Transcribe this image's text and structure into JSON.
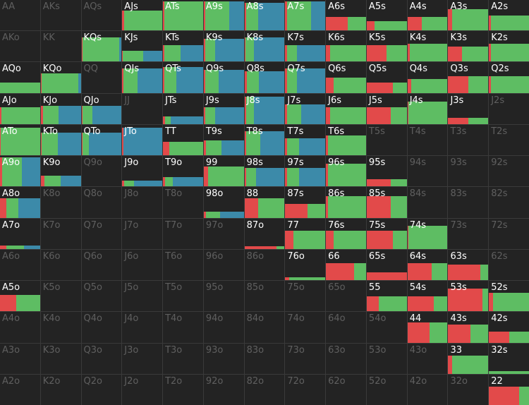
{
  "legend_colors": {
    "red": "#e24a4a",
    "green": "#5ebd63",
    "blue": "#3c8aa9"
  },
  "cells": [
    {
      "label": "AA",
      "active": false
    },
    {
      "label": "AKs",
      "active": false
    },
    {
      "label": "AQs",
      "active": false
    },
    {
      "label": "AJs",
      "active": true,
      "freq": 0.65,
      "mix": {
        "red": 0.04,
        "green": 0.96,
        "blue": 0
      }
    },
    {
      "label": "ATs",
      "active": true,
      "freq": 0.95,
      "mix": {
        "red": 0.03,
        "green": 0.97,
        "blue": 0
      }
    },
    {
      "label": "A9s",
      "active": true,
      "freq": 0.95,
      "mix": {
        "red": 0.03,
        "green": 0.6,
        "blue": 0.37
      }
    },
    {
      "label": "A8s",
      "active": true,
      "freq": 0.9,
      "mix": {
        "red": 0.04,
        "green": 0.3,
        "blue": 0.66
      }
    },
    {
      "label": "A7s",
      "active": true,
      "freq": 0.95,
      "mix": {
        "red": 0.04,
        "green": 0.6,
        "blue": 0.36
      }
    },
    {
      "label": "A6s",
      "active": true,
      "freq": 0.45,
      "mix": {
        "red": 0.55,
        "green": 0.45,
        "blue": 0
      }
    },
    {
      "label": "A5s",
      "active": true,
      "freq": 0.3,
      "mix": {
        "red": 0.2,
        "green": 0.8,
        "blue": 0
      }
    },
    {
      "label": "A4s",
      "active": true,
      "freq": 0.45,
      "mix": {
        "red": 0.35,
        "green": 0.65,
        "blue": 0
      }
    },
    {
      "label": "A3s",
      "active": true,
      "freq": 0.7,
      "mix": {
        "red": 0.1,
        "green": 0.9,
        "blue": 0
      }
    },
    {
      "label": "A2s",
      "active": true,
      "freq": 0.5,
      "mix": {
        "red": 0.05,
        "green": 0.95,
        "blue": 0
      }
    },
    {
      "label": "AKo",
      "active": false
    },
    {
      "label": "KK",
      "active": false
    },
    {
      "label": "KQs",
      "active": true,
      "freq": 0.8,
      "mix": {
        "red": 0.02,
        "green": 0.93,
        "blue": 0.05
      }
    },
    {
      "label": "KJs",
      "active": true,
      "freq": 0.35,
      "mix": {
        "red": 0.02,
        "green": 0.5,
        "blue": 0.48
      }
    },
    {
      "label": "KTs",
      "active": true,
      "freq": 0.55,
      "mix": {
        "red": 0.04,
        "green": 0.4,
        "blue": 0.56
      }
    },
    {
      "label": "K9s",
      "active": true,
      "freq": 0.75,
      "mix": {
        "red": 0.04,
        "green": 0.25,
        "blue": 0.71
      }
    },
    {
      "label": "K8s",
      "active": true,
      "freq": 0.8,
      "mix": {
        "red": 0.03,
        "green": 0.2,
        "blue": 0.77
      }
    },
    {
      "label": "K7s",
      "active": true,
      "freq": 0.55,
      "mix": {
        "red": 0.05,
        "green": 0.25,
        "blue": 0.7
      }
    },
    {
      "label": "K6s",
      "active": true,
      "freq": 0.55,
      "mix": {
        "red": 0.1,
        "green": 0.9,
        "blue": 0
      }
    },
    {
      "label": "K5s",
      "active": true,
      "freq": 0.55,
      "mix": {
        "red": 0.5,
        "green": 0.5,
        "blue": 0
      }
    },
    {
      "label": "K4s",
      "active": true,
      "freq": 0.6,
      "mix": {
        "red": 0.05,
        "green": 0.95,
        "blue": 0
      }
    },
    {
      "label": "K3s",
      "active": true,
      "freq": 0.5,
      "mix": {
        "red": 0.35,
        "green": 0.65,
        "blue": 0
      }
    },
    {
      "label": "K2s",
      "active": true,
      "freq": 0.6,
      "mix": {
        "red": 0.05,
        "green": 0.95,
        "blue": 0
      }
    },
    {
      "label": "AQo",
      "active": true,
      "freq": 0.35,
      "mix": {
        "red": 0,
        "green": 1,
        "blue": 0
      }
    },
    {
      "label": "KQo",
      "active": true,
      "freq": 0.65,
      "mix": {
        "red": 0.03,
        "green": 0.9,
        "blue": 0.07
      }
    },
    {
      "label": "QQ",
      "active": false
    },
    {
      "label": "QJs",
      "active": true,
      "freq": 0.8,
      "mix": {
        "red": 0.03,
        "green": 0.35,
        "blue": 0.62
      }
    },
    {
      "label": "QTs",
      "active": true,
      "freq": 0.85,
      "mix": {
        "red": 0.04,
        "green": 0.3,
        "blue": 0.66
      }
    },
    {
      "label": "Q9s",
      "active": true,
      "freq": 0.75,
      "mix": {
        "red": 0.03,
        "green": 0.35,
        "blue": 0.62
      }
    },
    {
      "label": "Q8s",
      "active": true,
      "freq": 0.7,
      "mix": {
        "red": 0.06,
        "green": 0.3,
        "blue": 0.64
      }
    },
    {
      "label": "Q7s",
      "active": true,
      "freq": 0.8,
      "mix": {
        "red": 0.05,
        "green": 0.25,
        "blue": 0.7
      }
    },
    {
      "label": "Q6s",
      "active": true,
      "freq": 0.5,
      "mix": {
        "red": 0.2,
        "green": 0.8,
        "blue": 0
      }
    },
    {
      "label": "Q5s",
      "active": true,
      "freq": 0.35,
      "mix": {
        "red": 0.65,
        "green": 0.35,
        "blue": 0
      }
    },
    {
      "label": "Q4s",
      "active": true,
      "freq": 0.45,
      "mix": {
        "red": 0.1,
        "green": 0.9,
        "blue": 0
      }
    },
    {
      "label": "Q3s",
      "active": true,
      "freq": 0.55,
      "mix": {
        "red": 0.5,
        "green": 0.5,
        "blue": 0
      }
    },
    {
      "label": "Q2s",
      "active": true,
      "freq": 0.55,
      "mix": {
        "red": 0.05,
        "green": 0.95,
        "blue": 0
      }
    },
    {
      "label": "AJo",
      "active": true,
      "freq": 0.55,
      "mix": {
        "red": 0.03,
        "green": 0.97,
        "blue": 0
      }
    },
    {
      "label": "KJo",
      "active": true,
      "freq": 0.6,
      "mix": {
        "red": 0.05,
        "green": 0.4,
        "blue": 0.55
      }
    },
    {
      "label": "QJo",
      "active": true,
      "freq": 0.6,
      "mix": {
        "red": 0.03,
        "green": 0.25,
        "blue": 0.72
      }
    },
    {
      "label": "JJ",
      "active": false
    },
    {
      "label": "JTs",
      "active": true,
      "freq": 0.25,
      "mix": {
        "red": 0.05,
        "green": 0.15,
        "blue": 0.8
      }
    },
    {
      "label": "J9s",
      "active": true,
      "freq": 0.55,
      "mix": {
        "red": 0.04,
        "green": 0.25,
        "blue": 0.71
      }
    },
    {
      "label": "J8s",
      "active": true,
      "freq": 0.9,
      "mix": {
        "red": 0.04,
        "green": 0.2,
        "blue": 0.76
      }
    },
    {
      "label": "J7s",
      "active": true,
      "freq": 0.65,
      "mix": {
        "red": 0.05,
        "green": 0.35,
        "blue": 0.6
      }
    },
    {
      "label": "J6s",
      "active": true,
      "freq": 0.55,
      "mix": {
        "red": 0.1,
        "green": 0.9,
        "blue": 0
      }
    },
    {
      "label": "J5s",
      "active": true,
      "freq": 0.55,
      "mix": {
        "red": 0.6,
        "green": 0.4,
        "blue": 0
      }
    },
    {
      "label": "J4s",
      "active": true,
      "freq": 0.75,
      "mix": {
        "red": 0.02,
        "green": 0.98,
        "blue": 0
      }
    },
    {
      "label": "J3s",
      "active": true,
      "freq": 0.2,
      "mix": {
        "red": 0.5,
        "green": 0.5,
        "blue": 0
      }
    },
    {
      "label": "J2s",
      "active": false
    },
    {
      "label": "ATo",
      "active": true,
      "freq": 0.9,
      "mix": {
        "red": 0.02,
        "green": 0.98,
        "blue": 0
      }
    },
    {
      "label": "KTo",
      "active": true,
      "freq": 0.75,
      "mix": {
        "red": 0.03,
        "green": 0.4,
        "blue": 0.57
      }
    },
    {
      "label": "QTo",
      "active": true,
      "freq": 0.75,
      "mix": {
        "red": 0.03,
        "green": 0.15,
        "blue": 0.82
      }
    },
    {
      "label": "JTo",
      "active": true,
      "freq": 0.9,
      "mix": {
        "red": 0.03,
        "green": 0,
        "blue": 0.97
      }
    },
    {
      "label": "TT",
      "active": true,
      "freq": 0.45,
      "mix": {
        "red": 0.15,
        "green": 0.85,
        "blue": 0
      }
    },
    {
      "label": "T9s",
      "active": true,
      "freq": 0.5,
      "mix": {
        "red": 0.05,
        "green": 0.4,
        "blue": 0.55
      }
    },
    {
      "label": "T8s",
      "active": true,
      "freq": 0.8,
      "mix": {
        "red": 0.04,
        "green": 0.35,
        "blue": 0.61
      }
    },
    {
      "label": "T7s",
      "active": true,
      "freq": 0.55,
      "mix": {
        "red": 0.05,
        "green": 0.3,
        "blue": 0.65
      }
    },
    {
      "label": "T6s",
      "active": true,
      "freq": 0.65,
      "mix": {
        "red": 0.05,
        "green": 0.95,
        "blue": 0
      }
    },
    {
      "label": "T5s",
      "active": false
    },
    {
      "label": "T4s",
      "active": false
    },
    {
      "label": "T3s",
      "active": false
    },
    {
      "label": "T2s",
      "active": false
    },
    {
      "label": "A9o",
      "active": true,
      "freq": 0.95,
      "mix": {
        "red": 0.05,
        "green": 0.5,
        "blue": 0.45
      }
    },
    {
      "label": "K9o",
      "active": true,
      "freq": 0.35,
      "mix": {
        "red": 0.1,
        "green": 0.4,
        "blue": 0.5
      }
    },
    {
      "label": "Q9o",
      "active": false
    },
    {
      "label": "J9o",
      "active": true,
      "freq": 0.2,
      "mix": {
        "red": 0.05,
        "green": 0.25,
        "blue": 0.7
      }
    },
    {
      "label": "T9o",
      "active": true,
      "freq": 0.3,
      "mix": {
        "red": 0.05,
        "green": 0.2,
        "blue": 0.75
      }
    },
    {
      "label": "99",
      "active": true,
      "freq": 0.65,
      "mix": {
        "red": 0.1,
        "green": 0.9,
        "blue": 0
      }
    },
    {
      "label": "98s",
      "active": true,
      "freq": 0.6,
      "mix": {
        "red": 0.04,
        "green": 0.25,
        "blue": 0.71
      }
    },
    {
      "label": "97s",
      "active": true,
      "freq": 0.6,
      "mix": {
        "red": 0.05,
        "green": 0.3,
        "blue": 0.65
      }
    },
    {
      "label": "96s",
      "active": true,
      "freq": 0.75,
      "mix": {
        "red": 0.05,
        "green": 0.95,
        "blue": 0
      }
    },
    {
      "label": "95s",
      "active": true,
      "freq": 0.25,
      "mix": {
        "red": 0.6,
        "green": 0.4,
        "blue": 0
      }
    },
    {
      "label": "94s",
      "active": false
    },
    {
      "label": "93s",
      "active": false
    },
    {
      "label": "92s",
      "active": false
    },
    {
      "label": "A8o",
      "active": true,
      "freq": 0.65,
      "mix": {
        "red": 0.15,
        "green": 0.3,
        "blue": 0.55
      }
    },
    {
      "label": "K8o",
      "active": false
    },
    {
      "label": "Q8o",
      "active": false
    },
    {
      "label": "J8o",
      "active": false
    },
    {
      "label": "T8o",
      "active": false
    },
    {
      "label": "98o",
      "active": true,
      "freq": 0.2,
      "mix": {
        "red": 0.05,
        "green": 0.35,
        "blue": 0.6
      }
    },
    {
      "label": "88",
      "active": true,
      "freq": 0.65,
      "mix": {
        "red": 0.35,
        "green": 0.65,
        "blue": 0
      }
    },
    {
      "label": "87s",
      "active": true,
      "freq": 0.45,
      "mix": {
        "red": 0.55,
        "green": 0.45,
        "blue": 0
      }
    },
    {
      "label": "86s",
      "active": true,
      "freq": 0.7,
      "mix": {
        "red": 0.05,
        "green": 0.95,
        "blue": 0
      }
    },
    {
      "label": "85s",
      "active": true,
      "freq": 0.7,
      "mix": {
        "red": 0.6,
        "green": 0.4,
        "blue": 0
      }
    },
    {
      "label": "84s",
      "active": false
    },
    {
      "label": "83s",
      "active": false
    },
    {
      "label": "82s",
      "active": false
    },
    {
      "label": "A7o",
      "active": true,
      "freq": 0.12,
      "mix": {
        "red": 0.15,
        "green": 0.45,
        "blue": 0.4
      }
    },
    {
      "label": "K7o",
      "active": false
    },
    {
      "label": "Q7o",
      "active": false
    },
    {
      "label": "J7o",
      "active": false
    },
    {
      "label": "T7o",
      "active": false
    },
    {
      "label": "97o",
      "active": false
    },
    {
      "label": "87o",
      "active": true,
      "freq": 0.1,
      "mix": {
        "red": 0.8,
        "green": 0.2,
        "blue": 0
      }
    },
    {
      "label": "77",
      "active": true,
      "freq": 0.6,
      "mix": {
        "red": 0.2,
        "green": 0.8,
        "blue": 0
      }
    },
    {
      "label": "76s",
      "active": true,
      "freq": 0.6,
      "mix": {
        "red": 0.2,
        "green": 0.8,
        "blue": 0
      }
    },
    {
      "label": "75s",
      "active": true,
      "freq": 0.6,
      "mix": {
        "red": 0.65,
        "green": 0.35,
        "blue": 0
      }
    },
    {
      "label": "74s",
      "active": true,
      "freq": 0.75,
      "mix": {
        "red": 0.02,
        "green": 0.98,
        "blue": 0
      }
    },
    {
      "label": "73s",
      "active": false
    },
    {
      "label": "72s",
      "active": false
    },
    {
      "label": "A6o",
      "active": false
    },
    {
      "label": "K6o",
      "active": false
    },
    {
      "label": "Q6o",
      "active": false
    },
    {
      "label": "J6o",
      "active": false
    },
    {
      "label": "T6o",
      "active": false
    },
    {
      "label": "96o",
      "active": false
    },
    {
      "label": "86o",
      "active": false
    },
    {
      "label": "76o",
      "active": true,
      "freq": 0.1,
      "mix": {
        "red": 0.1,
        "green": 0.9,
        "blue": 0
      }
    },
    {
      "label": "66",
      "active": true,
      "freq": 0.55,
      "mix": {
        "red": 0.7,
        "green": 0.3,
        "blue": 0
      }
    },
    {
      "label": "65s",
      "active": true,
      "freq": 0.25,
      "mix": {
        "red": 1,
        "green": 0,
        "blue": 0
      }
    },
    {
      "label": "64s",
      "active": true,
      "freq": 0.55,
      "mix": {
        "red": 0.6,
        "green": 0.4,
        "blue": 0
      }
    },
    {
      "label": "63s",
      "active": true,
      "freq": 0.5,
      "mix": {
        "red": 0.8,
        "green": 0.2,
        "blue": 0
      }
    },
    {
      "label": "62s",
      "active": false
    },
    {
      "label": "A5o",
      "active": true,
      "freq": 0.55,
      "mix": {
        "red": 0.4,
        "green": 0.6,
        "blue": 0
      }
    },
    {
      "label": "K5o",
      "active": false
    },
    {
      "label": "Q5o",
      "active": false
    },
    {
      "label": "J5o",
      "active": false
    },
    {
      "label": "T5o",
      "active": false
    },
    {
      "label": "95o",
      "active": false
    },
    {
      "label": "85o",
      "active": false
    },
    {
      "label": "75o",
      "active": false
    },
    {
      "label": "65o",
      "active": false
    },
    {
      "label": "55",
      "active": true,
      "freq": 0.5,
      "mix": {
        "red": 0.3,
        "green": 0.7,
        "blue": 0
      }
    },
    {
      "label": "54s",
      "active": true,
      "freq": 0.5,
      "mix": {
        "red": 0.65,
        "green": 0.35,
        "blue": 0
      }
    },
    {
      "label": "53s",
      "active": true,
      "freq": 0.75,
      "mix": {
        "red": 0.85,
        "green": 0.15,
        "blue": 0
      }
    },
    {
      "label": "52s",
      "active": true,
      "freq": 0.6,
      "mix": {
        "red": 0.1,
        "green": 0.9,
        "blue": 0
      }
    },
    {
      "label": "A4o",
      "active": false
    },
    {
      "label": "K4o",
      "active": false
    },
    {
      "label": "Q4o",
      "active": false
    },
    {
      "label": "J4o",
      "active": false
    },
    {
      "label": "T4o",
      "active": false
    },
    {
      "label": "94o",
      "active": false
    },
    {
      "label": "84o",
      "active": false
    },
    {
      "label": "74o",
      "active": false
    },
    {
      "label": "64o",
      "active": false
    },
    {
      "label": "54o",
      "active": false
    },
    {
      "label": "44",
      "active": true,
      "freq": 0.65,
      "mix": {
        "red": 0.55,
        "green": 0.45,
        "blue": 0
      }
    },
    {
      "label": "43s",
      "active": true,
      "freq": 0.6,
      "mix": {
        "red": 0.55,
        "green": 0.45,
        "blue": 0
      }
    },
    {
      "label": "42s",
      "active": true,
      "freq": 0.35,
      "mix": {
        "red": 0.5,
        "green": 0.5,
        "blue": 0
      }
    },
    {
      "label": "A3o",
      "active": false
    },
    {
      "label": "K3o",
      "active": false
    },
    {
      "label": "Q3o",
      "active": false
    },
    {
      "label": "J3o",
      "active": false
    },
    {
      "label": "T3o",
      "active": false
    },
    {
      "label": "93o",
      "active": false
    },
    {
      "label": "83o",
      "active": false
    },
    {
      "label": "73o",
      "active": false
    },
    {
      "label": "63o",
      "active": false
    },
    {
      "label": "53o",
      "active": false
    },
    {
      "label": "43o",
      "active": false
    },
    {
      "label": "33",
      "active": true,
      "freq": 0.6,
      "mix": {
        "red": 0.1,
        "green": 0.9,
        "blue": 0
      }
    },
    {
      "label": "32s",
      "active": true,
      "freq": 0.08,
      "mix": {
        "red": 0,
        "green": 1,
        "blue": 0
      }
    },
    {
      "label": "A2o",
      "active": false
    },
    {
      "label": "K2o",
      "active": false
    },
    {
      "label": "Q2o",
      "active": false
    },
    {
      "label": "J2o",
      "active": false
    },
    {
      "label": "T2o",
      "active": false
    },
    {
      "label": "92o",
      "active": false
    },
    {
      "label": "82o",
      "active": false
    },
    {
      "label": "72o",
      "active": false
    },
    {
      "label": "62o",
      "active": false
    },
    {
      "label": "52o",
      "active": false
    },
    {
      "label": "42o",
      "active": false
    },
    {
      "label": "32o",
      "active": false
    },
    {
      "label": "22",
      "active": true,
      "freq": 0.6,
      "mix": {
        "red": 0.75,
        "green": 0.25,
        "blue": 0
      }
    }
  ]
}
